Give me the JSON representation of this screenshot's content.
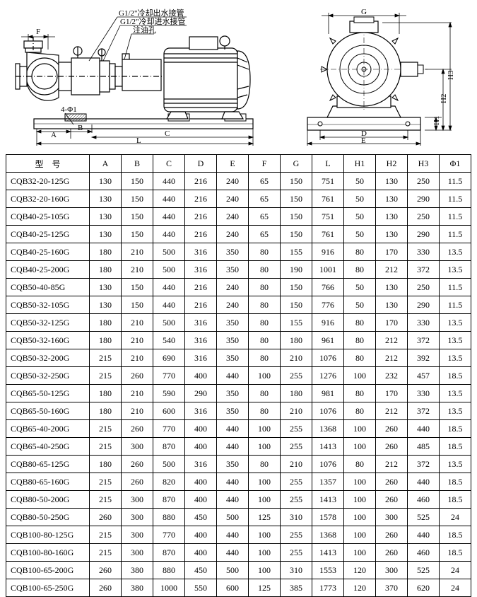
{
  "diagram_labels": {
    "left": {
      "callout1": "G1/2\"冷却出水接管",
      "callout2": "G1/2\"冷却进水接管",
      "callout3": "注油孔",
      "dimF": "F",
      "dim4phi1": "4-Φ1",
      "dimA": "A",
      "dimB": "B",
      "dimC": "C",
      "dimL": "L"
    },
    "right": {
      "dimG": "G",
      "dimH1": "H1",
      "dimH2": "H2",
      "dimH3": "H3",
      "dimD": "D",
      "dimE": "E"
    }
  },
  "table": {
    "headers": [
      "型　号",
      "A",
      "B",
      "C",
      "D",
      "E",
      "F",
      "G",
      "L",
      "H1",
      "H2",
      "H3",
      "Φ1"
    ],
    "rows": [
      [
        "CQB32-20-125G",
        "130",
        "150",
        "440",
        "216",
        "240",
        "65",
        "150",
        "751",
        "50",
        "130",
        "250",
        "11.5"
      ],
      [
        "CQB32-20-160G",
        "130",
        "150",
        "440",
        "216",
        "240",
        "65",
        "150",
        "761",
        "50",
        "130",
        "290",
        "11.5"
      ],
      [
        "CQB40-25-105G",
        "130",
        "150",
        "440",
        "216",
        "240",
        "65",
        "150",
        "751",
        "50",
        "130",
        "250",
        "11.5"
      ],
      [
        "CQB40-25-125G",
        "130",
        "150",
        "440",
        "216",
        "240",
        "65",
        "150",
        "761",
        "50",
        "130",
        "290",
        "11.5"
      ],
      [
        "CQB40-25-160G",
        "180",
        "210",
        "500",
        "316",
        "350",
        "80",
        "155",
        "916",
        "80",
        "170",
        "330",
        "13.5"
      ],
      [
        "CQB40-25-200G",
        "180",
        "210",
        "500",
        "316",
        "350",
        "80",
        "190",
        "1001",
        "80",
        "212",
        "372",
        "13.5"
      ],
      [
        "CQB50-40-85G",
        "130",
        "150",
        "440",
        "216",
        "240",
        "80",
        "150",
        "766",
        "50",
        "130",
        "250",
        "11.5"
      ],
      [
        "CQB50-32-105G",
        "130",
        "150",
        "440",
        "216",
        "240",
        "80",
        "150",
        "776",
        "50",
        "130",
        "290",
        "11.5"
      ],
      [
        "CQB50-32-125G",
        "180",
        "210",
        "500",
        "316",
        "350",
        "80",
        "155",
        "916",
        "80",
        "170",
        "330",
        "13.5"
      ],
      [
        "CQB50-32-160G",
        "180",
        "210",
        "540",
        "316",
        "350",
        "80",
        "180",
        "961",
        "80",
        "212",
        "372",
        "13.5"
      ],
      [
        "CQB50-32-200G",
        "215",
        "210",
        "690",
        "316",
        "350",
        "80",
        "210",
        "1076",
        "80",
        "212",
        "392",
        "13.5"
      ],
      [
        "CQB50-32-250G",
        "215",
        "260",
        "770",
        "400",
        "440",
        "100",
        "255",
        "1276",
        "100",
        "232",
        "457",
        "18.5"
      ],
      [
        "CQB65-50-125G",
        "180",
        "210",
        "590",
        "290",
        "350",
        "80",
        "180",
        "981",
        "80",
        "170",
        "330",
        "13.5"
      ],
      [
        "CQB65-50-160G",
        "180",
        "210",
        "600",
        "316",
        "350",
        "80",
        "210",
        "1076",
        "80",
        "212",
        "372",
        "13.5"
      ],
      [
        "CQB65-40-200G",
        "215",
        "260",
        "770",
        "400",
        "440",
        "100",
        "255",
        "1368",
        "100",
        "260",
        "440",
        "18.5"
      ],
      [
        "CQB65-40-250G",
        "215",
        "300",
        "870",
        "400",
        "440",
        "100",
        "255",
        "1413",
        "100",
        "260",
        "485",
        "18.5"
      ],
      [
        "CQB80-65-125G",
        "180",
        "260",
        "500",
        "316",
        "350",
        "80",
        "210",
        "1076",
        "80",
        "212",
        "372",
        "13.5"
      ],
      [
        "CQB80-65-160G",
        "215",
        "260",
        "820",
        "400",
        "440",
        "100",
        "255",
        "1357",
        "100",
        "260",
        "440",
        "18.5"
      ],
      [
        "CQB80-50-200G",
        "215",
        "300",
        "870",
        "400",
        "440",
        "100",
        "255",
        "1413",
        "100",
        "260",
        "460",
        "18.5"
      ],
      [
        "CQB80-50-250G",
        "260",
        "300",
        "880",
        "450",
        "500",
        "125",
        "310",
        "1578",
        "100",
        "300",
        "525",
        "24"
      ],
      [
        "CQB100-80-125G",
        "215",
        "300",
        "770",
        "400",
        "440",
        "100",
        "255",
        "1368",
        "100",
        "260",
        "440",
        "18.5"
      ],
      [
        "CQB100-80-160G",
        "215",
        "300",
        "870",
        "400",
        "440",
        "100",
        "255",
        "1413",
        "100",
        "260",
        "460",
        "18.5"
      ],
      [
        "CQB100-65-200G",
        "260",
        "380",
        "880",
        "450",
        "500",
        "100",
        "310",
        "1553",
        "120",
        "300",
        "525",
        "24"
      ],
      [
        "CQB100-65-250G",
        "260",
        "380",
        "1000",
        "550",
        "600",
        "125",
        "385",
        "1773",
        "120",
        "370",
        "620",
        "24"
      ]
    ]
  },
  "styling": {
    "stroke": "#000000",
    "fill_white": "#ffffff",
    "hatch": "#000000",
    "font_size_table": 12,
    "font_size_label": 11,
    "border_width": 1
  }
}
